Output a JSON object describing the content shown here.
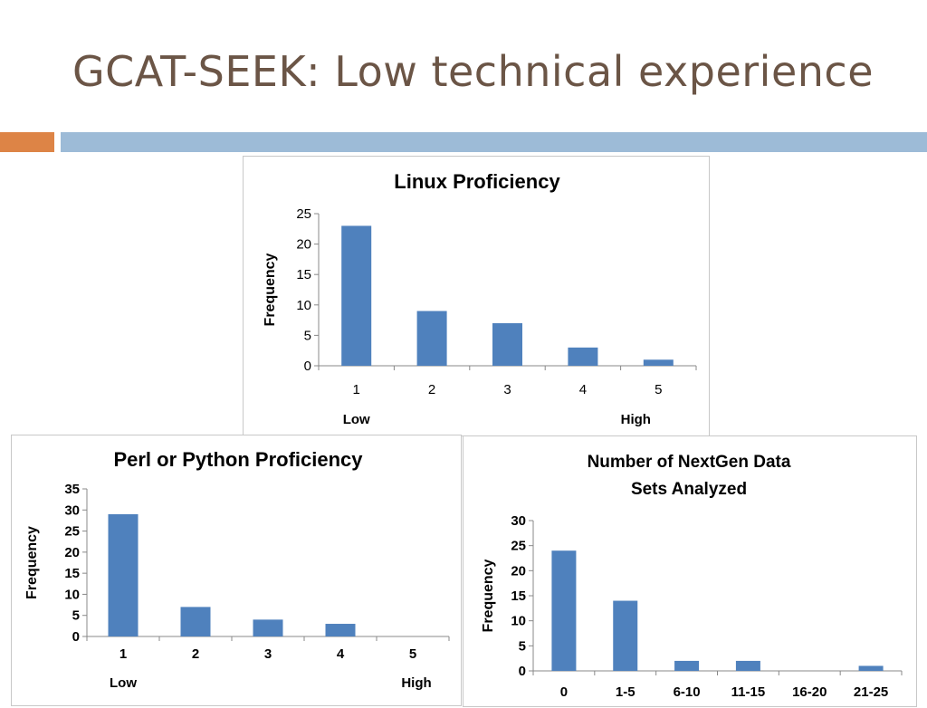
{
  "slide": {
    "title": "GCAT-SEEK: Low technical experience"
  },
  "colors": {
    "accent_orange": "#dd8446",
    "accent_blue": "#9dbbd7",
    "bar": "#4f81bd",
    "title": "#6b5546"
  },
  "chart_data": [
    {
      "type": "bar",
      "title": "Linux Proficiency",
      "ylabel": "Frequency",
      "categories": [
        "1",
        "2",
        "3",
        "4",
        "5"
      ],
      "values": [
        23,
        9,
        7,
        3,
        1
      ],
      "ylim": [
        0,
        25
      ],
      "yticks": [
        0,
        5,
        10,
        15,
        20,
        25
      ],
      "annotations": {
        "low": "Low",
        "high": "High"
      },
      "grid": false
    },
    {
      "type": "bar",
      "title": "Perl or Python Proficiency",
      "ylabel": "Frequency",
      "categories": [
        "1",
        "2",
        "3",
        "4",
        "5"
      ],
      "values": [
        29,
        7,
        4,
        3,
        0
      ],
      "ylim": [
        0,
        35
      ],
      "yticks": [
        0,
        5,
        10,
        15,
        20,
        25,
        30,
        35
      ],
      "annotations": {
        "low": "Low",
        "high": "High"
      },
      "grid": false
    },
    {
      "type": "bar",
      "title": "Number of NextGen Data Sets Analyzed",
      "ylabel": "Frequency",
      "categories": [
        "0",
        "1-5",
        "6-10",
        "11-15",
        "16-20",
        "21-25"
      ],
      "values": [
        24,
        14,
        2,
        2,
        0,
        1
      ],
      "ylim": [
        0,
        30
      ],
      "yticks": [
        0,
        5,
        10,
        15,
        20,
        25,
        30
      ],
      "grid": false
    }
  ]
}
